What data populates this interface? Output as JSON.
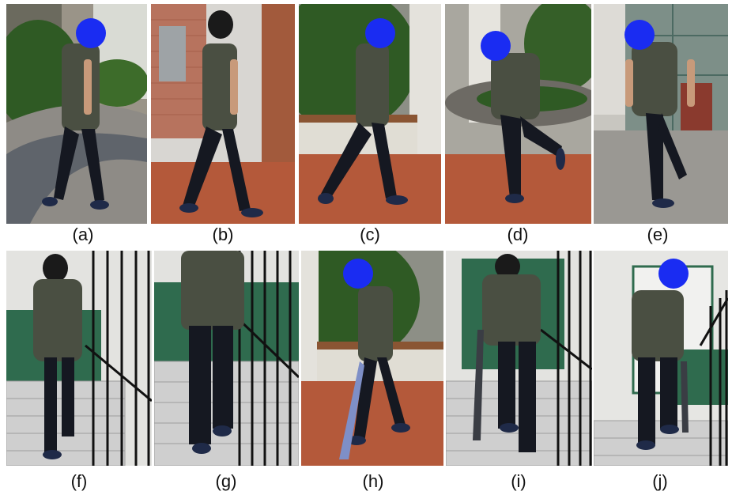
{
  "figure": {
    "top_row": [
      {
        "caption": "(a)",
        "scene": "walking on curved paved path beside tropical garden"
      },
      {
        "caption": "(b)",
        "scene": "walking past brick wall with mailboxes"
      },
      {
        "caption": "(c)",
        "scene": "walking on tiled floor beside planter"
      },
      {
        "caption": "(d)",
        "scene": "running past pillar and planter"
      },
      {
        "caption": "(e)",
        "scene": "walking out of glass door"
      }
    ],
    "bottom_row": [
      {
        "caption": "(f)",
        "scene": "walking down stairs holding railing"
      },
      {
        "caption": "(g)",
        "scene": "walking down stairs, close view"
      },
      {
        "caption": "(h)",
        "scene": "walking with umbrella on tiled floor"
      },
      {
        "caption": "(i)",
        "scene": "walking up stairs with umbrella"
      },
      {
        "caption": "(j)",
        "scene": "walking down stairs with umbrella near window"
      }
    ]
  },
  "colors": {
    "shirt": "#4a4f42",
    "pants": "#151821",
    "shoes": "#1f2a48",
    "face_mask": "#1a2cf2",
    "skin": "#c89a7a",
    "floor_tile": "#b4593a",
    "stair": "#cfcfcf",
    "railing": "#111111",
    "foliage": "#2f5a24",
    "green_wall": "#2f6b4e"
  }
}
